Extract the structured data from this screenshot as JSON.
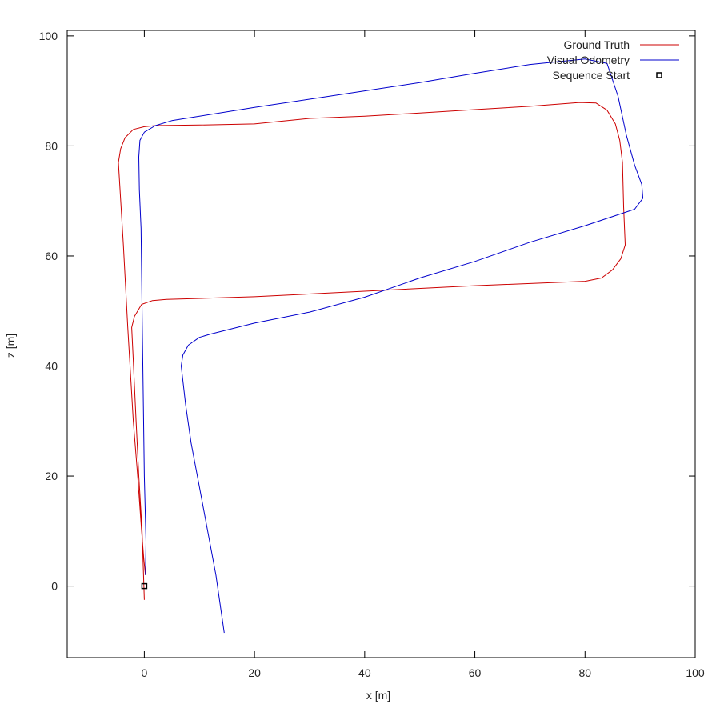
{
  "chart_data": {
    "type": "line",
    "xlabel": "x [m]",
    "ylabel": "z [m]",
    "xlim": [
      -14,
      100
    ],
    "ylim": [
      -13,
      101
    ],
    "x_ticks": [
      "0",
      "20",
      "40",
      "60",
      "80",
      "100"
    ],
    "y_ticks": [
      "0",
      "20",
      "40",
      "60",
      "80",
      "100"
    ],
    "grid": false,
    "legend_position": "top-right",
    "series": [
      {
        "name": "Ground Truth",
        "color": "#cc0000",
        "points": [
          [
            0.0,
            -2.5
          ],
          [
            -0.4,
            10
          ],
          [
            -1.0,
            20
          ],
          [
            -1.5,
            30
          ],
          [
            -2.0,
            41
          ],
          [
            -2.3,
            47
          ],
          [
            -1.8,
            49
          ],
          [
            -0.5,
            51.2
          ],
          [
            1.5,
            51.9
          ],
          [
            4,
            52.1
          ],
          [
            20,
            52.6
          ],
          [
            40,
            53.6
          ],
          [
            60,
            54.6
          ],
          [
            75,
            55.2
          ],
          [
            80,
            55.4
          ],
          [
            83,
            56.0
          ],
          [
            85,
            57.5
          ],
          [
            86.5,
            59.5
          ],
          [
            87.3,
            62
          ],
          [
            87.0,
            69
          ],
          [
            86.8,
            77
          ],
          [
            86.3,
            81
          ],
          [
            85.5,
            84
          ],
          [
            84,
            86.5
          ],
          [
            82,
            87.8
          ],
          [
            79,
            87.9
          ],
          [
            70,
            87.2
          ],
          [
            60,
            86.6
          ],
          [
            50,
            86.0
          ],
          [
            40,
            85.4
          ],
          [
            30,
            85.0
          ],
          [
            20,
            84.0
          ],
          [
            10,
            83.8
          ],
          [
            2,
            83.7
          ],
          [
            0,
            83.5
          ],
          [
            -2,
            83.0
          ],
          [
            -3.5,
            81.5
          ],
          [
            -4.3,
            79.5
          ],
          [
            -4.7,
            77
          ],
          [
            -3.8,
            62
          ],
          [
            -3.0,
            47
          ],
          [
            -2.0,
            30
          ],
          [
            -1.2,
            20
          ],
          [
            -0.5,
            10
          ],
          [
            -0.1,
            5
          ],
          [
            0.2,
            2
          ]
        ]
      },
      {
        "name": "Visual Odometry",
        "color": "#0000cc",
        "points": [
          [
            0.2,
            2.0
          ],
          [
            0.3,
            8
          ],
          [
            0.0,
            20
          ],
          [
            -0.2,
            35
          ],
          [
            -0.4,
            50
          ],
          [
            -0.6,
            65
          ],
          [
            -0.9,
            72
          ],
          [
            -1.0,
            78
          ],
          [
            -0.8,
            81
          ],
          [
            0,
            82.5
          ],
          [
            2,
            83.7
          ],
          [
            5,
            84.6
          ],
          [
            10,
            85.4
          ],
          [
            20,
            87.0
          ],
          [
            30,
            88.5
          ],
          [
            40,
            90.0
          ],
          [
            50,
            91.5
          ],
          [
            60,
            93.2
          ],
          [
            70,
            94.8
          ],
          [
            80,
            95.8
          ],
          [
            84,
            95.0
          ],
          [
            86,
            89
          ],
          [
            87.5,
            82
          ],
          [
            89,
            76.5
          ],
          [
            90.3,
            73
          ],
          [
            90.5,
            70.5
          ],
          [
            89,
            68.5
          ],
          [
            86,
            67.5
          ],
          [
            80,
            65.5
          ],
          [
            70,
            62.5
          ],
          [
            60,
            59.0
          ],
          [
            50,
            56.0
          ],
          [
            40,
            52.5
          ],
          [
            30,
            49.8
          ],
          [
            20,
            47.8
          ],
          [
            12,
            45.8
          ],
          [
            10,
            45.2
          ],
          [
            8,
            43.8
          ],
          [
            7,
            42
          ],
          [
            6.7,
            40
          ],
          [
            7.5,
            33
          ],
          [
            8.5,
            26
          ],
          [
            10,
            18
          ],
          [
            11.5,
            10
          ],
          [
            13,
            2
          ],
          [
            14.5,
            -8.5
          ]
        ]
      },
      {
        "name": "Sequence Start",
        "color": "#000000",
        "marker": "square",
        "points": [
          [
            0,
            0
          ]
        ]
      }
    ]
  }
}
